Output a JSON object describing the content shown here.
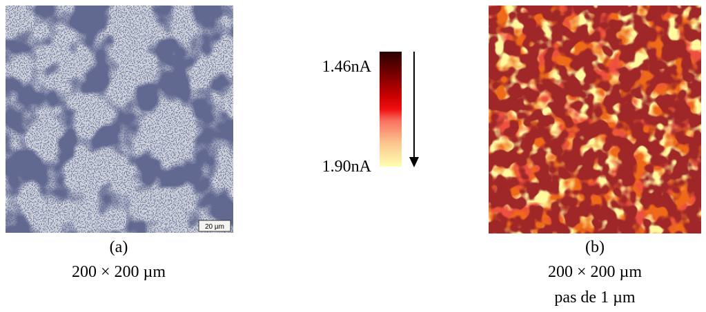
{
  "panels": [
    {
      "label": "(a)",
      "size": "200 × 200 µm",
      "scale_bar": "20 µm"
    },
    {
      "label": "(b)",
      "size": "200 × 200 µm",
      "step": "pas de 1 µm"
    }
  ],
  "colorbar": {
    "top_label": "1.46nA",
    "bottom_label": "1.90nA"
  }
}
